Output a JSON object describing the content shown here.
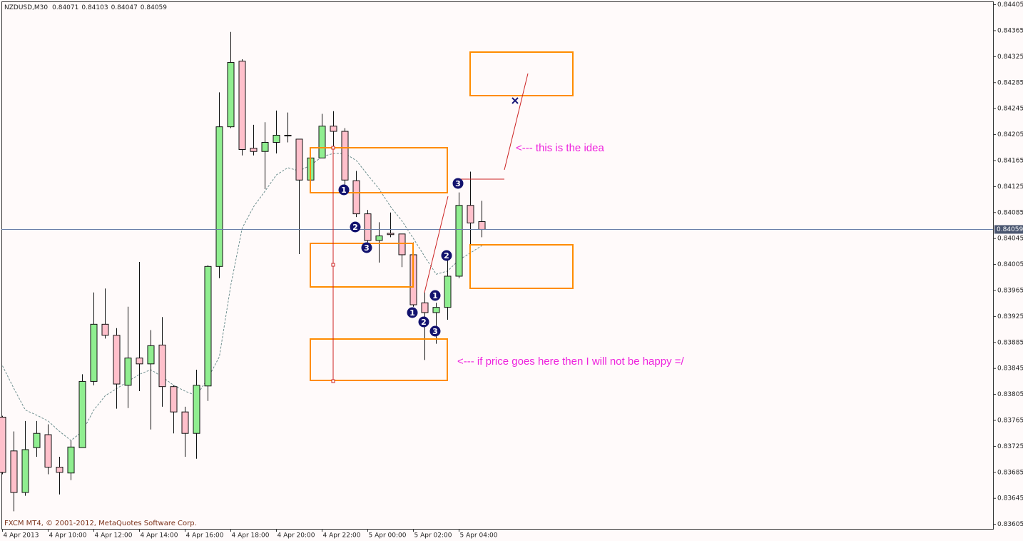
{
  "chart_data": {
    "type": "candlestick",
    "symbol": "NZDUSD,M30",
    "categories": [
      "4 Apr 2013",
      null,
      null,
      null,
      "4 Apr 10:00",
      null,
      null,
      null,
      "4 Apr 12:00",
      null,
      null,
      null,
      "4 Apr 14:00",
      null,
      null,
      null,
      "4 Apr 16:00",
      null,
      null,
      null,
      "4 Apr 18:00",
      null,
      null,
      null,
      "4 Apr 20:00",
      null,
      null,
      null,
      "4 Apr 22:00",
      null,
      null,
      null,
      "5 Apr 00:00",
      null,
      null,
      null,
      "5 Apr 02:00",
      null,
      null,
      null,
      "5 Apr 04:00",
      null,
      null
    ],
    "open": [
      0.8377,
      0.83718,
      0.83654,
      0.83723,
      0.83743,
      0.83693,
      0.83684,
      0.83723,
      0.83825,
      0.83913,
      0.83896,
      0.83819,
      0.83861,
      0.83852,
      0.83881,
      0.83817,
      0.83778,
      0.83745,
      0.83818,
      0.84002,
      0.84217,
      0.84318,
      0.84184,
      0.84179,
      0.84193,
      0.84204,
      0.84198,
      0.84135,
      0.84169,
      0.84218,
      0.8421,
      0.84134,
      0.84083,
      0.84042,
      0.84053,
      0.84052,
      0.8402,
      0.83946,
      0.83931,
      0.83939,
      0.83987,
      0.84096,
      0.84071
    ],
    "high": [
      0.83772,
      0.83748,
      0.83764,
      0.83764,
      0.83759,
      0.83709,
      0.83734,
      0.83836,
      0.83962,
      0.83968,
      0.83907,
      0.8394,
      0.84009,
      0.83904,
      0.83924,
      0.83819,
      0.83786,
      0.83843,
      0.84004,
      0.8427,
      0.84363,
      0.84321,
      0.8422,
      0.84224,
      0.84242,
      0.84239,
      0.84198,
      0.84184,
      0.84237,
      0.84241,
      0.84215,
      0.84149,
      0.84089,
      0.8407,
      0.84085,
      0.84052,
      0.84039,
      0.83962,
      0.83946,
      0.84023,
      0.84116,
      0.84148,
      0.84103
    ],
    "low": [
      0.83682,
      0.83625,
      0.83649,
      0.83709,
      0.83682,
      0.83651,
      0.83673,
      0.83723,
      0.83819,
      0.83891,
      0.83783,
      0.83784,
      0.8381,
      0.83751,
      0.83786,
      0.83745,
      0.83709,
      0.83706,
      0.83795,
      0.83984,
      0.84215,
      0.84173,
      0.84173,
      0.84121,
      0.84176,
      0.84193,
      0.84021,
      0.84132,
      0.84169,
      0.84184,
      0.8412,
      0.84078,
      0.84039,
      0.84008,
      0.84047,
      0.84001,
      0.8394,
      0.83858,
      0.83883,
      0.8392,
      0.83984,
      0.84034,
      0.84047
    ],
    "close": [
      0.83685,
      0.83654,
      0.8372,
      0.83745,
      0.83693,
      0.83685,
      0.83724,
      0.83825,
      0.83913,
      0.83896,
      0.83821,
      0.83861,
      0.83852,
      0.8388,
      0.83817,
      0.83778,
      0.83745,
      0.83819,
      0.84002,
      0.84217,
      0.84316,
      0.84182,
      0.84179,
      0.84193,
      0.84204,
      0.84204,
      0.84135,
      0.84169,
      0.84218,
      0.8421,
      0.84135,
      0.84083,
      0.84042,
      0.84049,
      0.84051,
      0.8402,
      0.83943,
      0.83931,
      0.83939,
      0.83987,
      0.84096,
      0.84069,
      0.84059
    ],
    "up_color": "#90ee90",
    "down_color": "#ffc0cb",
    "moving_average": {
      "color": "#6f8f8f",
      "values": [
        0.83849,
        0.83814,
        0.83781,
        0.83773,
        0.83764,
        0.83748,
        0.83734,
        0.83748,
        0.83781,
        0.83803,
        0.83814,
        0.83825,
        0.83836,
        0.83843,
        0.83832,
        0.83819,
        0.8381,
        0.83803,
        0.8383,
        0.83863,
        0.83973,
        0.84061,
        0.84094,
        0.84118,
        0.84143,
        0.84154,
        0.84149,
        0.84158,
        0.84171,
        0.84176,
        0.84176,
        0.84165,
        0.84143,
        0.84121,
        0.84094,
        0.84072,
        0.84045,
        0.84017,
        0.8399,
        0.83995,
        0.84012,
        0.84023,
        0.84034
      ]
    },
    "current_price_color": "#6a7fa8",
    "ylim": [
      0.83598,
      0.8441
    ],
    "yticks": [
      0.84405,
      0.84365,
      0.84325,
      0.84285,
      0.84245,
      0.84205,
      0.84165,
      0.84125,
      0.84085,
      0.84045,
      0.84005,
      0.83965,
      0.83925,
      0.83885,
      0.83845,
      0.83805,
      0.83765,
      0.83725,
      0.83685,
      0.83645,
      0.83605
    ],
    "annotations": {
      "wave_labels": [
        "1",
        "2",
        "3",
        "1",
        "2",
        "3",
        "1",
        "2",
        "3"
      ],
      "notes": [
        "<--- this is the idea",
        "<--- if price goes here then I will not be happy =/"
      ]
    }
  },
  "footer": "FXCM MT4, © 2001-2012, MetaQuotes Software Corp."
}
